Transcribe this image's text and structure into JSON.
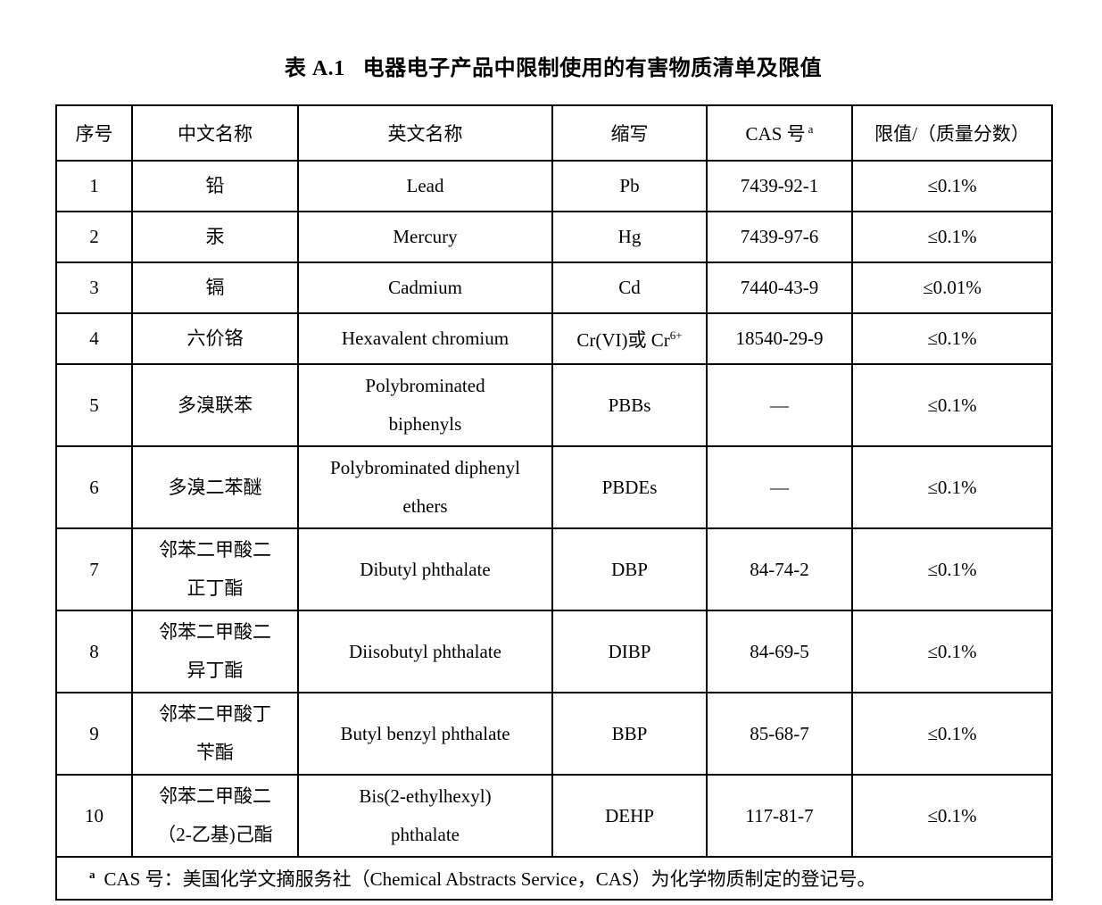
{
  "caption": {
    "label": "表 A.1",
    "title": "电器电子产品中限制使用的有害物质清单及限值"
  },
  "table": {
    "headers": {
      "index": "序号",
      "cn_name": "中文名称",
      "en_name": "英文名称",
      "abbr": "缩写",
      "cas": "CAS 号",
      "cas_sup": "a",
      "limit": "限值/（质量分数）"
    },
    "rows": [
      {
        "index": "1",
        "cn": [
          "铅"
        ],
        "en": [
          "Lead"
        ],
        "abbr": "Pb",
        "abbr_sup": "",
        "cas": "7439-92-1",
        "limit": "≤0.1%"
      },
      {
        "index": "2",
        "cn": [
          "汞"
        ],
        "en": [
          "Mercury"
        ],
        "abbr": "Hg",
        "abbr_sup": "",
        "cas": "7439-97-6",
        "limit": "≤0.1%"
      },
      {
        "index": "3",
        "cn": [
          "镉"
        ],
        "en": [
          "Cadmium"
        ],
        "abbr": "Cd",
        "abbr_sup": "",
        "cas": "7440-43-9",
        "limit": "≤0.01%"
      },
      {
        "index": "4",
        "cn": [
          "六价铬"
        ],
        "en": [
          "Hexavalent chromium"
        ],
        "abbr": "Cr(VI)或 Cr",
        "abbr_sup": "6+",
        "cas": "18540-29-9",
        "limit": "≤0.1%"
      },
      {
        "index": "5",
        "cn": [
          "多溴联苯"
        ],
        "en": [
          "Polybrominated",
          "biphenyls"
        ],
        "abbr": "PBBs",
        "abbr_sup": "",
        "cas": "—",
        "limit": "≤0.1%"
      },
      {
        "index": "6",
        "cn": [
          "多溴二苯醚"
        ],
        "en": [
          "Polybrominated diphenyl",
          "ethers"
        ],
        "abbr": "PBDEs",
        "abbr_sup": "",
        "cas": "—",
        "limit": "≤0.1%"
      },
      {
        "index": "7",
        "cn": [
          "邻苯二甲酸二",
          "正丁酯"
        ],
        "en": [
          "Dibutyl phthalate"
        ],
        "abbr": "DBP",
        "abbr_sup": "",
        "cas": "84-74-2",
        "limit": "≤0.1%"
      },
      {
        "index": "8",
        "cn": [
          "邻苯二甲酸二",
          "异丁酯"
        ],
        "en": [
          "Diisobutyl phthalate"
        ],
        "abbr": "DIBP",
        "abbr_sup": "",
        "cas": "84-69-5",
        "limit": "≤0.1%"
      },
      {
        "index": "9",
        "cn": [
          "邻苯二甲酸丁",
          "苄酯"
        ],
        "en": [
          "Butyl benzyl phthalate"
        ],
        "abbr": "BBP",
        "abbr_sup": "",
        "cas": "85-68-7",
        "limit": "≤0.1%"
      },
      {
        "index": "10",
        "cn": [
          "邻苯二甲酸二",
          "（2-乙基)己酯"
        ],
        "en": [
          "Bis(2-ethylhexyl)",
          "phthalate"
        ],
        "abbr": "DEHP",
        "abbr_sup": "",
        "cas": "117-81-7",
        "limit": "≤0.1%"
      }
    ],
    "footnote": {
      "sup": "a",
      "text": "CAS 号：美国化学文摘服务社（Chemical Abstracts Service，CAS）为化学物质制定的登记号。"
    }
  },
  "colors": {
    "text": "#000000",
    "border": "#000000",
    "background": "#ffffff"
  }
}
